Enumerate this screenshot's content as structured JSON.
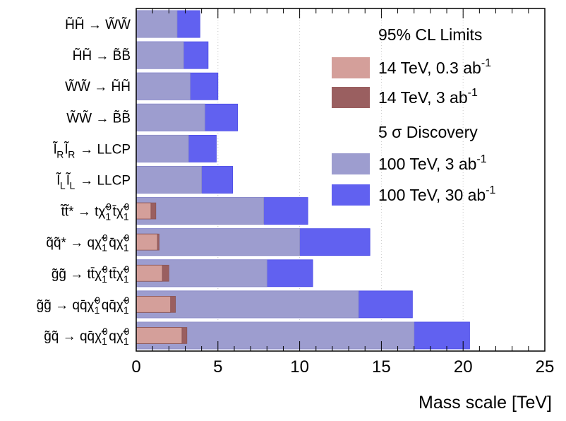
{
  "chart_data": {
    "type": "bar",
    "orientation": "horizontal",
    "title": "",
    "xlabel": "Mass scale [TeV]",
    "ylabel": "",
    "xlim": [
      0,
      25
    ],
    "x_ticks": [
      "0",
      "5",
      "10",
      "15",
      "20",
      "25"
    ],
    "grid": "vertical dotted",
    "categories": [
      {
        "lhs": "H̃H̃",
        "rhs": "W̃W̃"
      },
      {
        "lhs": "H̃H̃",
        "rhs": "B̃B̃"
      },
      {
        "lhs": "W̃W̃",
        "rhs": "H̃H̃"
      },
      {
        "lhs": "W̃W̃",
        "rhs": "B̃B̃"
      },
      {
        "lhs": "l̃Rl̃R",
        "rhs": "LLCP"
      },
      {
        "lhs": "l̃Ll̃L",
        "rhs": "LLCP"
      },
      {
        "lhs": "t̃t̃*",
        "rhs": "tχ̃10t̄χ̃10"
      },
      {
        "lhs": "q̃q̃*",
        "rhs": "qχ̃10q̄χ̃10"
      },
      {
        "lhs": "g̃g̃",
        "rhs": "tt̄χ̃10tt̄χ̃10"
      },
      {
        "lhs": "g̃g̃",
        "rhs": "qq̄χ̃10qq̄χ̃10"
      },
      {
        "lhs": "g̃q̃",
        "rhs": "qq̄χ̃10qχ̃10"
      }
    ],
    "legend_headers": [
      "95% CL Limits",
      "5 σ Discovery"
    ],
    "series": [
      {
        "name": "14 TeV, 0.3 ab-1",
        "group": "95% CL Limits",
        "color": "#d49f9a",
        "values": [
          null,
          null,
          null,
          null,
          null,
          null,
          0.9,
          1.3,
          1.6,
          2.1,
          2.8
        ]
      },
      {
        "name": "14 TeV, 3 ab-1",
        "group": "95% CL Limits",
        "color": "#9a5f60",
        "values": [
          null,
          null,
          null,
          null,
          null,
          null,
          1.2,
          1.4,
          2.0,
          2.4,
          3.1
        ]
      },
      {
        "name": "100 TeV, 3 ab-1",
        "group": "5 σ Discovery",
        "color": "#9d9dcf",
        "values": [
          2.5,
          2.9,
          3.3,
          4.2,
          3.2,
          4.0,
          7.8,
          10.0,
          8.0,
          13.6,
          17.0
        ]
      },
      {
        "name": "100 TeV, 30 ab-1",
        "group": "5 σ Discovery",
        "color": "#6161f0",
        "values": [
          3.9,
          4.4,
          5.0,
          6.2,
          4.9,
          5.9,
          10.5,
          14.3,
          10.8,
          16.9,
          20.4
        ]
      }
    ]
  }
}
